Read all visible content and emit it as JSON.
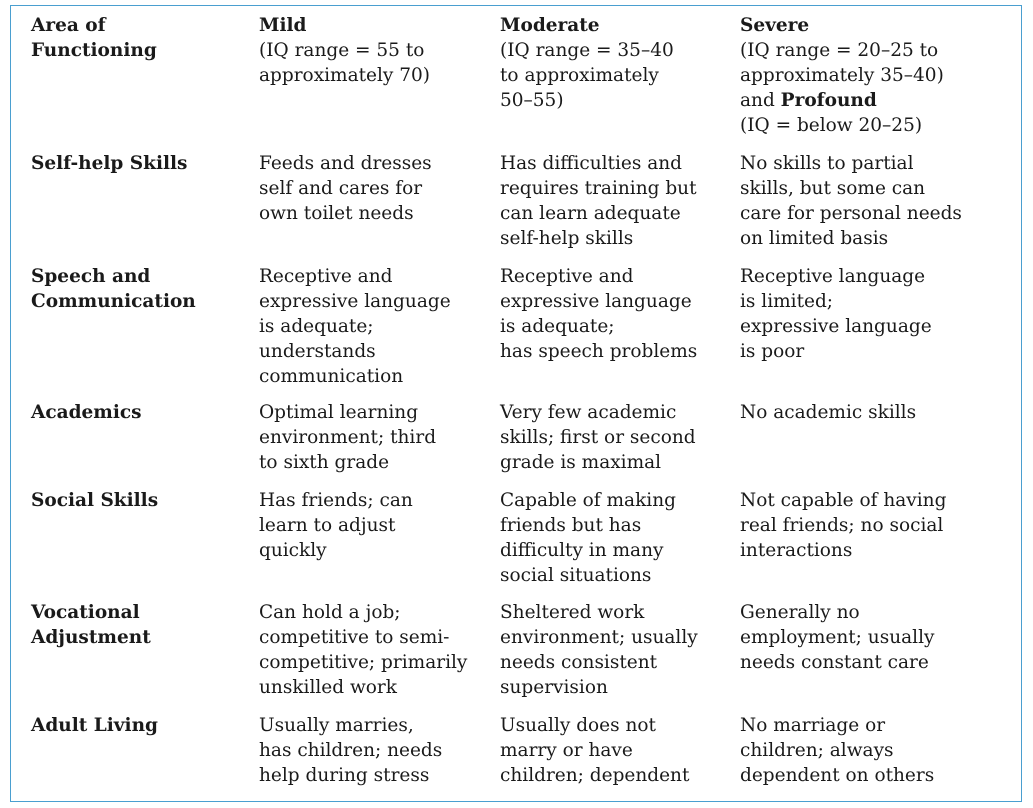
{
  "header": {
    "area": {
      "l1": "Area of",
      "l2": "Functioning"
    },
    "mild": {
      "l1": "Mild",
      "l2": "(IQ range = 55 to",
      "l3": "approximately 70)"
    },
    "moderate": {
      "l1": "Moderate",
      "l2": "(IQ range = 35–40",
      "l3": "to approximately",
      "l4": "50–55)"
    },
    "severe": {
      "l1": "Severe",
      "l2": "(IQ range = 20–25 to",
      "l3": "approximately 35–40)",
      "l4a": "and ",
      "l4b": "Profound",
      "l5": "(IQ = below 20–25)"
    }
  },
  "rows": [
    {
      "area": [
        "Self-help Skills"
      ],
      "mild": [
        "Feeds and dresses",
        "self and cares for",
        "own toilet needs"
      ],
      "moderate": [
        "Has difficulties and",
        "requires training but",
        "can learn adequate",
        "self-help skills"
      ],
      "severe": [
        "No skills to partial",
        "skills, but some can",
        "care for personal needs",
        "on limited basis"
      ]
    },
    {
      "area": [
        "Speech and",
        "Communication"
      ],
      "mild": [
        "Receptive and",
        "expressive language",
        "is adequate;",
        "understands",
        "communication"
      ],
      "moderate": [
        "Receptive and",
        "expressive language",
        "is adequate;",
        "has speech problems"
      ],
      "severe": [
        "Receptive language",
        "is limited;",
        "expressive language",
        "is poor"
      ]
    },
    {
      "area": [
        "Academics"
      ],
      "mild": [
        "Optimal learning",
        "environment; third",
        "to sixth grade"
      ],
      "moderate": [
        "Very few academic",
        "skills; first or second",
        "grade is maximal"
      ],
      "severe": [
        "No academic skills"
      ]
    },
    {
      "area": [
        "Social Skills"
      ],
      "mild": [
        "Has friends; can",
        "learn to adjust",
        "quickly"
      ],
      "moderate": [
        "Capable of making",
        "friends but has",
        "difficulty in many",
        "social situations"
      ],
      "severe": [
        "Not capable of having",
        "real friends; no social",
        "interactions"
      ]
    },
    {
      "area": [
        "Vocational",
        "Adjustment"
      ],
      "mild": [
        "Can hold a job;",
        "competitive to semi-",
        "competitive; primarily",
        "unskilled work"
      ],
      "moderate": [
        "Sheltered work",
        "environment; usually",
        "needs consistent",
        "supervision"
      ],
      "severe": [
        "Generally no",
        "employment; usually",
        "needs constant care"
      ]
    },
    {
      "area": [
        "Adult Living"
      ],
      "mild": [
        "Usually marries,",
        "has children; needs",
        "help during stress"
      ],
      "moderate": [
        "Usually does not",
        "marry or have",
        "children; dependent"
      ],
      "severe": [
        "No marriage or",
        "children; always",
        "dependent on others"
      ]
    }
  ]
}
